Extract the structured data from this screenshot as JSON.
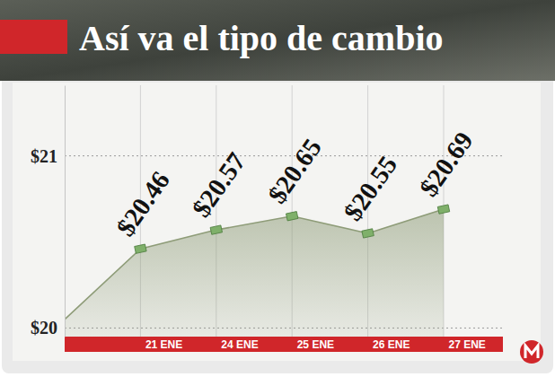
{
  "chart_data": {
    "type": "area",
    "title": "Así va el tipo de cambio",
    "categories": [
      null,
      "21 ENE",
      "24 ENE",
      "25 ENE",
      "26 ENE",
      "27 ENE"
    ],
    "values": [
      20.05,
      20.46,
      20.57,
      20.65,
      20.55,
      20.69
    ],
    "value_labels": [
      null,
      "$20.46",
      "$20.57",
      "$20.65",
      "$20.55",
      "$20.69"
    ],
    "color": "#8e9c78",
    "ylim": [
      19.95,
      21.41
    ],
    "yticks": [
      {
        "value": 20,
        "label": "$20"
      },
      {
        "value": 21,
        "label": "$21"
      }
    ],
    "grid": true,
    "data_labels": true,
    "marker": "square"
  }
}
